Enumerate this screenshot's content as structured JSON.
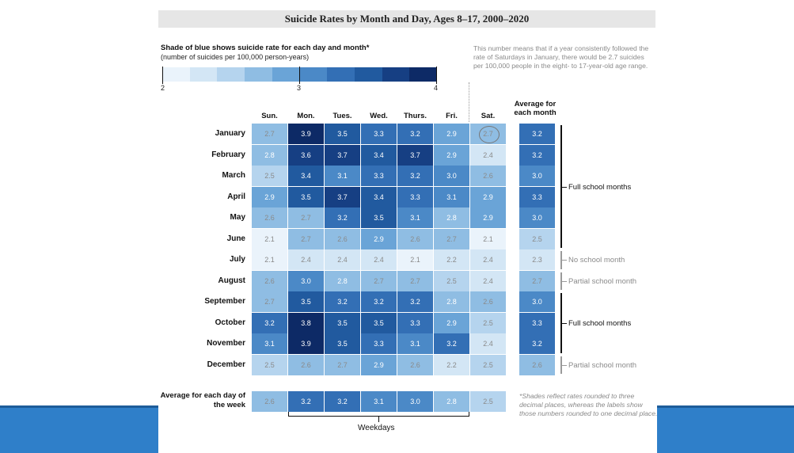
{
  "title": "Suicide Rates by Month and Day, Ages 8–17, 2000–2020",
  "legend": {
    "heading": "Shade of blue shows suicide rate for each day and month*",
    "subheading": "(number of suicides per 100,000 person-years)",
    "scale_min": "2",
    "scale_mid": "3",
    "scale_max": "4",
    "colors": [
      "#eaf3fb",
      "#d3e6f5",
      "#b5d4ee",
      "#8fbde3",
      "#6aa4d7",
      "#4b89c7",
      "#336fb5",
      "#215a9f",
      "#163f83",
      "#0d2a66"
    ]
  },
  "annotation": "This number means that if a year consistently followed the rate of Saturdays in January, there would be 2.7 suicides per 100,000 people in the eight- to 17-year-old age range.",
  "average_month_header": "Average for each month",
  "average_day_label": "Average for each day of the week",
  "weekdays_label": "Weekdays",
  "footnote": "*Shades reflect rates rounded to three decimal places, whereas the labels show those numbers rounded to one decimal place.",
  "groups": [
    {
      "label": "Full school months",
      "dark": true
    },
    {
      "label": "No school month",
      "dark": false
    },
    {
      "label": "Partial school month",
      "dark": false
    },
    {
      "label": "Full school months",
      "dark": true
    },
    {
      "label": "Partial school month",
      "dark": false
    }
  ],
  "chart_data": {
    "type": "heatmap",
    "title": "Suicide Rates by Month and Day, Ages 8–17, 2000–2020",
    "columns": [
      "Sun.",
      "Mon.",
      "Tues.",
      "Wed.",
      "Thurs.",
      "Fri.",
      "Sat."
    ],
    "rows": [
      "January",
      "February",
      "March",
      "April",
      "May",
      "June",
      "July",
      "August",
      "September",
      "October",
      "November",
      "December"
    ],
    "values": [
      [
        2.7,
        3.9,
        3.5,
        3.3,
        3.2,
        2.9,
        2.7
      ],
      [
        2.8,
        3.6,
        3.7,
        3.4,
        3.7,
        2.9,
        2.4
      ],
      [
        2.5,
        3.4,
        3.1,
        3.3,
        3.2,
        3.0,
        2.6
      ],
      [
        2.9,
        3.5,
        3.7,
        3.4,
        3.3,
        3.1,
        2.9
      ],
      [
        2.6,
        2.7,
        3.2,
        3.5,
        3.1,
        2.8,
        2.9
      ],
      [
        2.1,
        2.7,
        2.6,
        2.9,
        2.6,
        2.7,
        2.1
      ],
      [
        2.1,
        2.4,
        2.4,
        2.4,
        2.1,
        2.2,
        2.4
      ],
      [
        2.6,
        3.0,
        2.8,
        2.7,
        2.7,
        2.5,
        2.4
      ],
      [
        2.7,
        3.5,
        3.2,
        3.2,
        3.2,
        2.8,
        2.6
      ],
      [
        3.2,
        3.8,
        3.5,
        3.5,
        3.3,
        2.9,
        2.5
      ],
      [
        3.1,
        3.9,
        3.5,
        3.3,
        3.1,
        3.2,
        2.4
      ],
      [
        2.5,
        2.6,
        2.7,
        2.9,
        2.6,
        2.2,
        2.5
      ]
    ],
    "row_averages": [
      3.2,
      3.2,
      3.0,
      3.3,
      3.0,
      2.5,
      2.3,
      2.7,
      3.0,
      3.3,
      3.2,
      2.6
    ],
    "column_averages": [
      2.6,
      3.2,
      3.2,
      3.1,
      3.0,
      2.8,
      2.5
    ],
    "color_range": [
      2,
      4
    ],
    "highlighted_cell": {
      "row": "January",
      "column": "Sat.",
      "value": 2.7
    }
  }
}
